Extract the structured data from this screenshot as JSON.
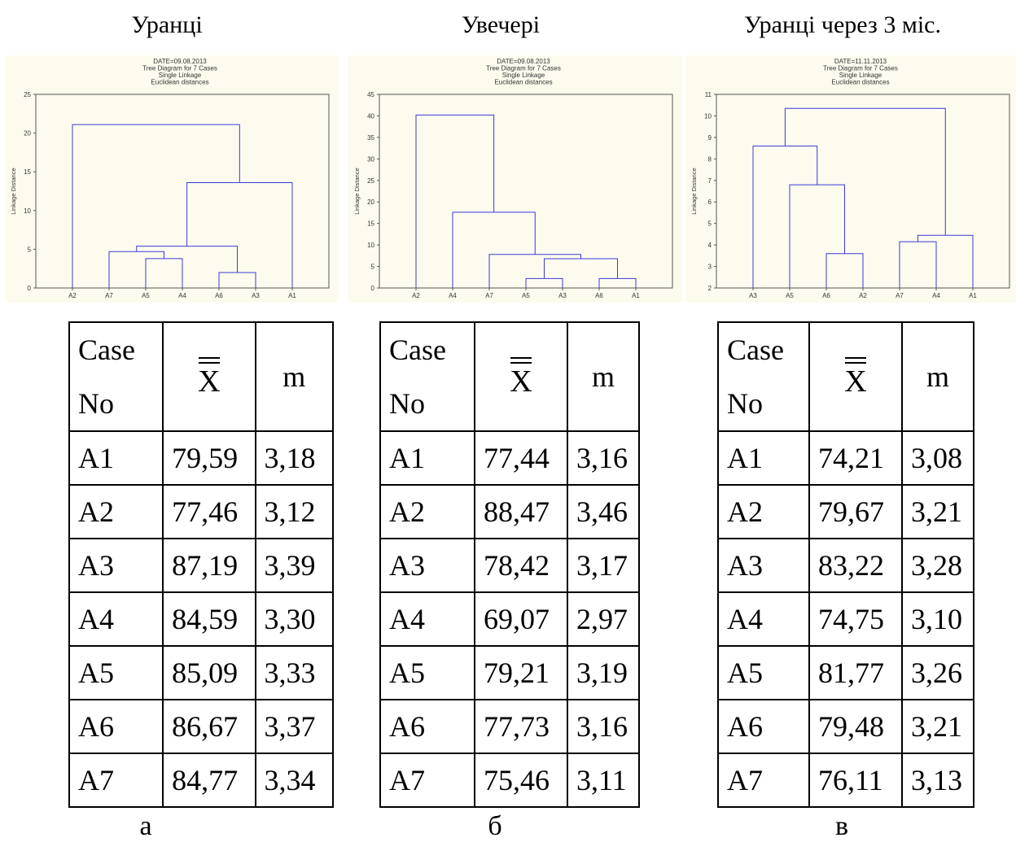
{
  "panels": [
    {
      "title": "Уранці",
      "sublabel": "а",
      "dendrogram": {
        "type": "dendrogram",
        "header": [
          "DATE=09.08.2013",
          "Tree Diagram for 7 Cases",
          "Single Linkage",
          "Euclidean distances"
        ],
        "ylabel": "Linkage Distance",
        "ylim": [
          0,
          25
        ],
        "yticks": [
          0,
          5,
          10,
          15,
          20,
          25
        ],
        "leaves": [
          "A2",
          "A7",
          "A5",
          "A4",
          "A6",
          "A3",
          "A1"
        ],
        "merges": [
          {
            "left": 4,
            "right": 5,
            "height": 2.0
          },
          {
            "left": 2,
            "right": 3,
            "height": 3.8
          },
          {
            "left": 1,
            "right": "c1",
            "height": 4.7
          },
          {
            "left": "c2",
            "right": "c0",
            "height": 5.4
          },
          {
            "left": "c3",
            "right": 6,
            "height": 13.6
          },
          {
            "left": 0,
            "right": "c4",
            "height": 21.1
          }
        ]
      },
      "table": {
        "rows": [
          [
            "A1",
            "79,59",
            "3,18"
          ],
          [
            "A2",
            "77,46",
            "3,12"
          ],
          [
            "A3",
            "87,19",
            "3,39"
          ],
          [
            "A4",
            "84,59",
            "3,30"
          ],
          [
            "A5",
            "85,09",
            "3,33"
          ],
          [
            "A6",
            "86,67",
            "3,37"
          ],
          [
            "A7",
            "84,77",
            "3,34"
          ]
        ]
      }
    },
    {
      "title": "Увечері",
      "sublabel": "б",
      "dendrogram": {
        "type": "dendrogram",
        "header": [
          "DATE=09.08.2013",
          "Tree Diagram for 7 Cases",
          "Single Linkage",
          "Euclidean distances"
        ],
        "ylabel": "Linkage Distance",
        "ylim": [
          0,
          45
        ],
        "yticks": [
          0,
          5,
          10,
          15,
          20,
          25,
          30,
          35,
          40,
          45
        ],
        "leaves": [
          "A2",
          "A4",
          "A7",
          "A5",
          "A3",
          "A6",
          "A1"
        ],
        "merges": [
          {
            "left": 3,
            "right": 4,
            "height": 2.2
          },
          {
            "left": 5,
            "right": 6,
            "height": 2.2
          },
          {
            "left": "c0",
            "right": "c1",
            "height": 6.8
          },
          {
            "left": 2,
            "right": "c2",
            "height": 7.8
          },
          {
            "left": 1,
            "right": "c3",
            "height": 17.6
          },
          {
            "left": 0,
            "right": "c4",
            "height": 40.2
          }
        ]
      },
      "table": {
        "rows": [
          [
            "A1",
            "77,44",
            "3,16"
          ],
          [
            "A2",
            "88,47",
            "3,46"
          ],
          [
            "A3",
            "78,42",
            "3,17"
          ],
          [
            "A4",
            "69,07",
            "2,97"
          ],
          [
            "A5",
            "79,21",
            "3,19"
          ],
          [
            "A6",
            "77,73",
            "3,16"
          ],
          [
            "A7",
            "75,46",
            "3,11"
          ]
        ]
      }
    },
    {
      "title": "Уранці через 3 міс.",
      "sublabel": "в",
      "dendrogram": {
        "type": "dendrogram",
        "header": [
          "DATE=11.11.2013",
          "Tree Diagram for 7 Cases",
          "Single Linkage",
          "Euclidean distances"
        ],
        "ylabel": "Linkage Distance",
        "ylim": [
          2,
          11
        ],
        "yticks": [
          2,
          3,
          4,
          5,
          6,
          7,
          8,
          9,
          10,
          11
        ],
        "leaves": [
          "A3",
          "A5",
          "A6",
          "A2",
          "A7",
          "A4",
          "A1"
        ],
        "merges": [
          {
            "left": 2,
            "right": 3,
            "height": 3.6
          },
          {
            "left": 4,
            "right": 5,
            "height": 4.15
          },
          {
            "left": "c1",
            "right": 6,
            "height": 4.45
          },
          {
            "left": 1,
            "right": "c0",
            "height": 6.8
          },
          {
            "left": 0,
            "right": "c3",
            "height": 8.6
          },
          {
            "left": "c4",
            "right": "c2",
            "height": 10.35
          }
        ]
      },
      "table": {
        "rows": [
          [
            "A1",
            "74,21",
            "3,08"
          ],
          [
            "A2",
            "79,67",
            "3,21"
          ],
          [
            "A3",
            "83,22",
            "3,28"
          ],
          [
            "A4",
            "74,75",
            "3,10"
          ],
          [
            "A5",
            "81,77",
            "3,26"
          ],
          [
            "A6",
            "79,48",
            "3,21"
          ],
          [
            "A7",
            "76,11",
            "3,13"
          ]
        ]
      }
    }
  ],
  "table_header": {
    "case_line1": "Case",
    "case_line2": "No",
    "mean_symbol": "X",
    "m_label": "m"
  },
  "colors": {
    "tree_line": "#3b3bd6",
    "chart_bg": "#fdfbee",
    "axis": "#555555"
  }
}
